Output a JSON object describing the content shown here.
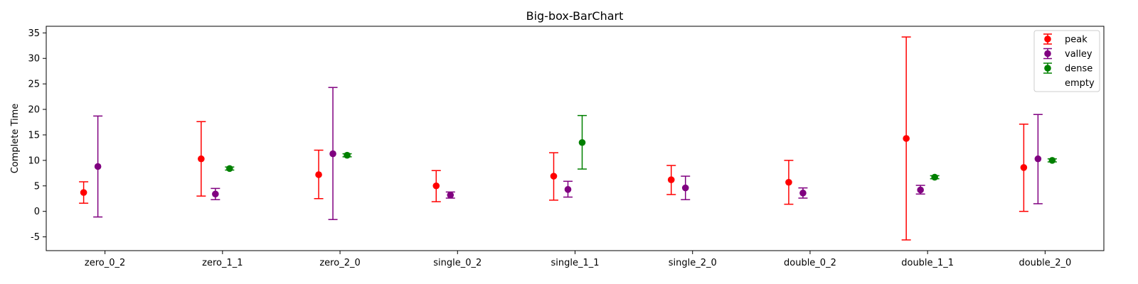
{
  "chart_data": {
    "type": "errorbar",
    "title": "Big-box-BarChart",
    "xlabel": "",
    "ylabel": "Complete Time",
    "ylim": [
      -7.7,
      36.3
    ],
    "yticks": [
      -5,
      0,
      5,
      10,
      15,
      20,
      25,
      30,
      35
    ],
    "categories": [
      "zero_0_2",
      "zero_1_1",
      "zero_2_0",
      "single_0_2",
      "single_1_1",
      "single_2_0",
      "double_0_2",
      "double_1_1",
      "double_2_0"
    ],
    "legend_position": "top-right",
    "grid": false,
    "series": [
      {
        "name": "peak",
        "color": "#ff0000",
        "values": [
          3.7,
          10.3,
          7.2,
          5.0,
          6.9,
          6.2,
          5.7,
          14.3,
          8.6
        ],
        "lower": [
          1.6,
          3.0,
          2.5,
          1.9,
          2.2,
          3.3,
          1.4,
          -5.6,
          0.0
        ],
        "upper": [
          5.8,
          17.6,
          12.0,
          8.0,
          11.5,
          9.0,
          10.0,
          34.2,
          17.1
        ]
      },
      {
        "name": "valley",
        "color": "#800080",
        "values": [
          8.8,
          3.4,
          11.3,
          3.2,
          4.3,
          4.6,
          3.6,
          4.2,
          10.3
        ],
        "lower": [
          -1.1,
          2.3,
          -1.6,
          2.6,
          2.8,
          2.3,
          2.6,
          3.4,
          1.5
        ],
        "upper": [
          18.7,
          4.5,
          24.3,
          3.8,
          5.9,
          6.9,
          4.6,
          5.1,
          19.0
        ]
      },
      {
        "name": "dense",
        "color": "#008000",
        "values": [
          null,
          8.4,
          11.0,
          null,
          13.5,
          null,
          null,
          6.7,
          10.0
        ],
        "lower": [
          null,
          8.1,
          10.7,
          null,
          8.3,
          null,
          null,
          6.4,
          9.7
        ],
        "upper": [
          null,
          8.7,
          11.3,
          null,
          18.8,
          null,
          null,
          7.0,
          10.3
        ]
      },
      {
        "name": "empty",
        "color": "#1f77b4",
        "values": [
          null,
          null,
          null,
          null,
          null,
          null,
          null,
          null,
          null
        ],
        "lower": [
          null,
          null,
          null,
          null,
          null,
          null,
          null,
          null,
          null
        ],
        "upper": [
          null,
          null,
          null,
          null,
          null,
          null,
          null,
          null,
          null
        ]
      }
    ]
  }
}
